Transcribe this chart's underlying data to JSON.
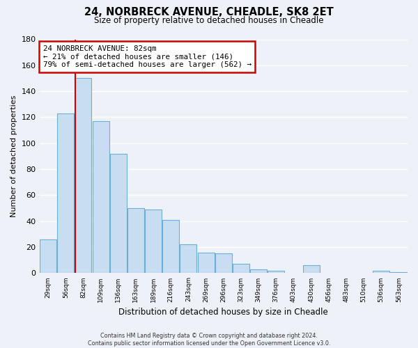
{
  "title": "24, NORBRECK AVENUE, CHEADLE, SK8 2ET",
  "subtitle": "Size of property relative to detached houses in Cheadle",
  "xlabel": "Distribution of detached houses by size in Cheadle",
  "ylabel": "Number of detached properties",
  "bar_color": "#c8ddf0",
  "bar_edge_color": "#6baed6",
  "ref_line_color": "#cc0000",
  "categories": [
    "29sqm",
    "56sqm",
    "82sqm",
    "109sqm",
    "136sqm",
    "163sqm",
    "189sqm",
    "216sqm",
    "243sqm",
    "269sqm",
    "296sqm",
    "323sqm",
    "349sqm",
    "376sqm",
    "403sqm",
    "430sqm",
    "456sqm",
    "483sqm",
    "510sqm",
    "536sqm",
    "563sqm"
  ],
  "values": [
    26,
    123,
    150,
    117,
    92,
    50,
    49,
    41,
    22,
    16,
    15,
    7,
    3,
    2,
    0,
    6,
    0,
    0,
    0,
    2,
    1
  ],
  "ref_bar_index": 2,
  "ylim": [
    0,
    180
  ],
  "yticks": [
    0,
    20,
    40,
    60,
    80,
    100,
    120,
    140,
    160,
    180
  ],
  "annotation_line1": "24 NORBRECK AVENUE: 82sqm",
  "annotation_line2": "← 21% of detached houses are smaller (146)",
  "annotation_line3": "79% of semi-detached houses are larger (562) →",
  "annotation_box_color": "white",
  "annotation_border_color": "#cc0000",
  "footer_line1": "Contains HM Land Registry data © Crown copyright and database right 2024.",
  "footer_line2": "Contains public sector information licensed under the Open Government Licence v3.0.",
  "background_color": "#eef2f8",
  "grid_color": "#ffffff"
}
